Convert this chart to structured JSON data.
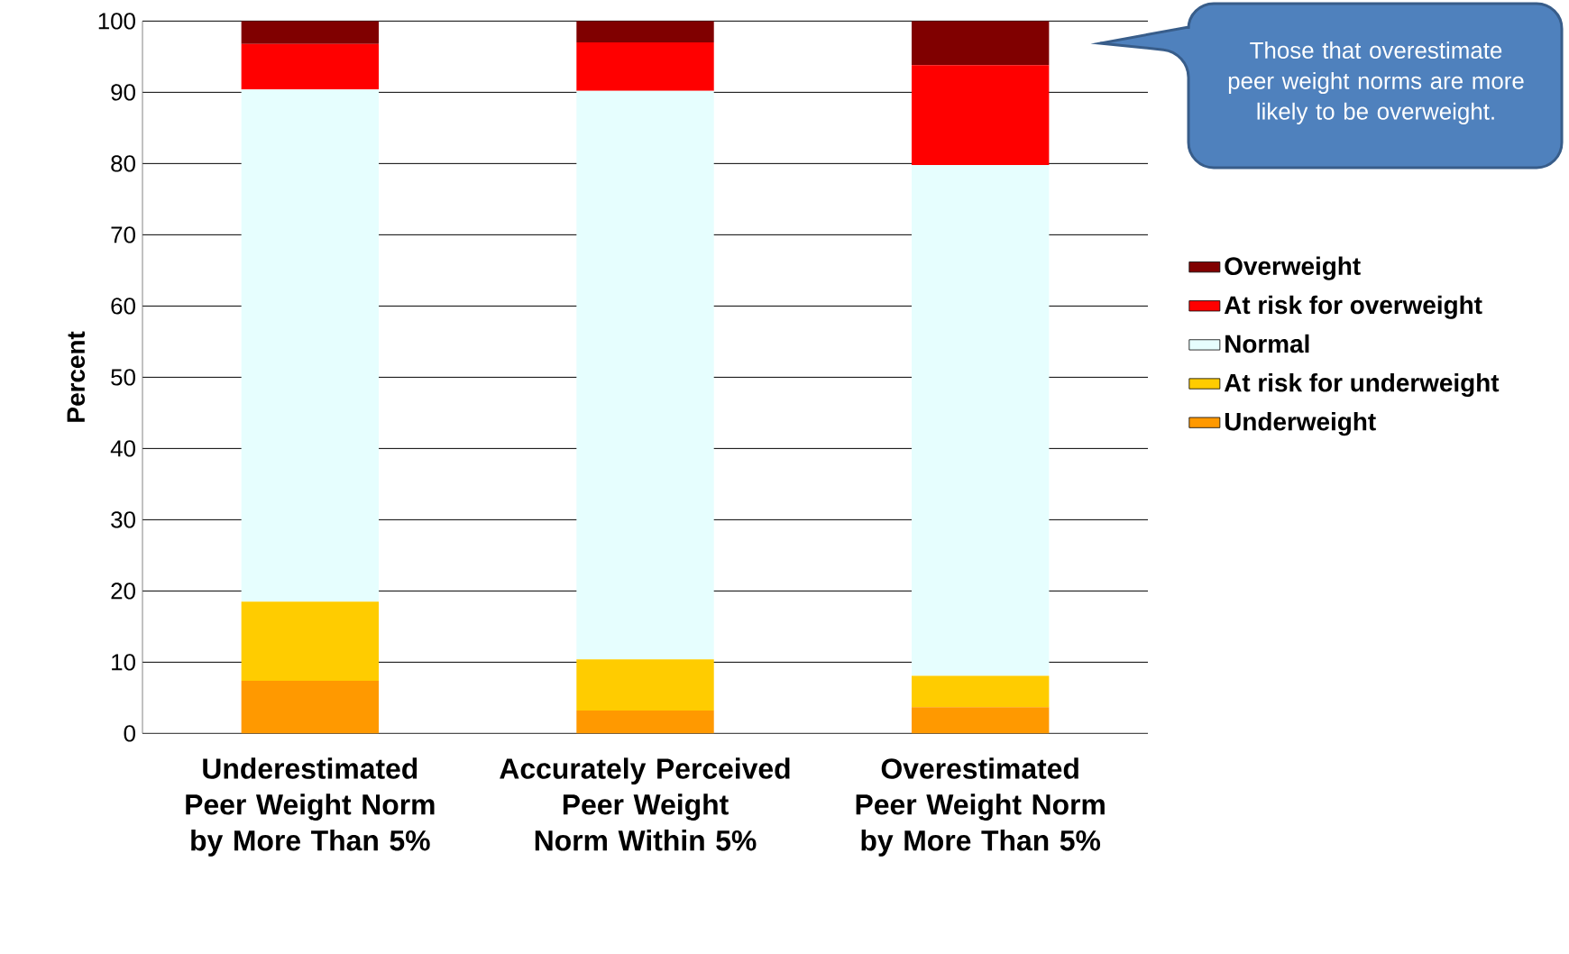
{
  "chart_data": {
    "type": "bar",
    "stacked": true,
    "ylabel": "Percent",
    "categories": [
      "Underestimated Peer Weight Norm by More Than 5%",
      "Accurately Perceived Peer Weight Norm Within 5%",
      "Overestimated Peer Weight Norm by More Than 5%"
    ],
    "series": [
      {
        "name": "Underweight",
        "color": "#ff9900",
        "values": [
          7.4,
          3.2,
          3.7
        ]
      },
      {
        "name": "At risk for underweight",
        "color": "#ffcc00",
        "values": [
          11.1,
          7.2,
          4.4
        ]
      },
      {
        "name": "Normal",
        "color": "#e6fefe",
        "values": [
          71.9,
          79.8,
          71.7
        ]
      },
      {
        "name": "At risk for overweight",
        "color": "#ff0000",
        "values": [
          6.4,
          6.8,
          14.0
        ]
      },
      {
        "name": "Overweight",
        "color": "#800000",
        "values": [
          3.2,
          3.0,
          6.2
        ]
      }
    ],
    "ylim": [
      0,
      100
    ],
    "yticks": [
      0,
      10,
      20,
      30,
      40,
      50,
      60,
      70,
      80,
      90,
      100
    ],
    "grid": "y",
    "legend": "right",
    "annotations": [
      "Those that overestimate peer weight norms are more likely to be overweight."
    ]
  }
}
